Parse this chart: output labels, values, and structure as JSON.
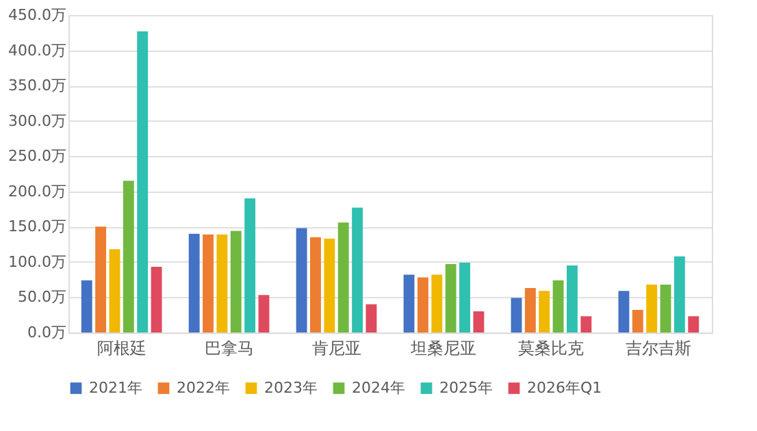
{
  "chart_data": {
    "type": "bar",
    "categories": [
      "阿根廷",
      "巴拿马",
      "肯尼亚",
      "坦桑尼亚",
      "莫桑比克",
      "吉尔吉斯"
    ],
    "series": [
      {
        "name": "2021年",
        "color": "#4472c4",
        "values": [
          74,
          140,
          148,
          82,
          49,
          59
        ]
      },
      {
        "name": "2022年",
        "color": "#ed7d31",
        "values": [
          150,
          139,
          135,
          78,
          63,
          32
        ]
      },
      {
        "name": "2023年",
        "color": "#f0b800",
        "values": [
          118,
          139,
          133,
          82,
          59,
          68
        ]
      },
      {
        "name": "2024年",
        "color": "#70b840",
        "values": [
          215,
          144,
          156,
          97,
          74,
          68
        ]
      },
      {
        "name": "2025年",
        "color": "#2fc0b0",
        "values": [
          427,
          190,
          177,
          99,
          95,
          108
        ]
      },
      {
        "name": "2026年Q1",
        "color": "#e04a5e",
        "values": [
          93,
          53,
          40,
          30,
          23,
          23
        ]
      }
    ],
    "ylim": [
      0,
      450
    ],
    "yticks": [
      {
        "value": 0,
        "label": "0.0万"
      },
      {
        "value": 50,
        "label": "50.0万"
      },
      {
        "value": 100,
        "label": "100.0万"
      },
      {
        "value": 150,
        "label": "150.0万"
      },
      {
        "value": 200,
        "label": "200.0万"
      },
      {
        "value": 250,
        "label": "250.0万"
      },
      {
        "value": 300,
        "label": "300.0万"
      },
      {
        "value": 350,
        "label": "350.0万"
      },
      {
        "value": 400,
        "label": "400.0万"
      },
      {
        "value": 450,
        "label": "450.0万"
      }
    ],
    "grid": "y",
    "legend": "bottom"
  }
}
